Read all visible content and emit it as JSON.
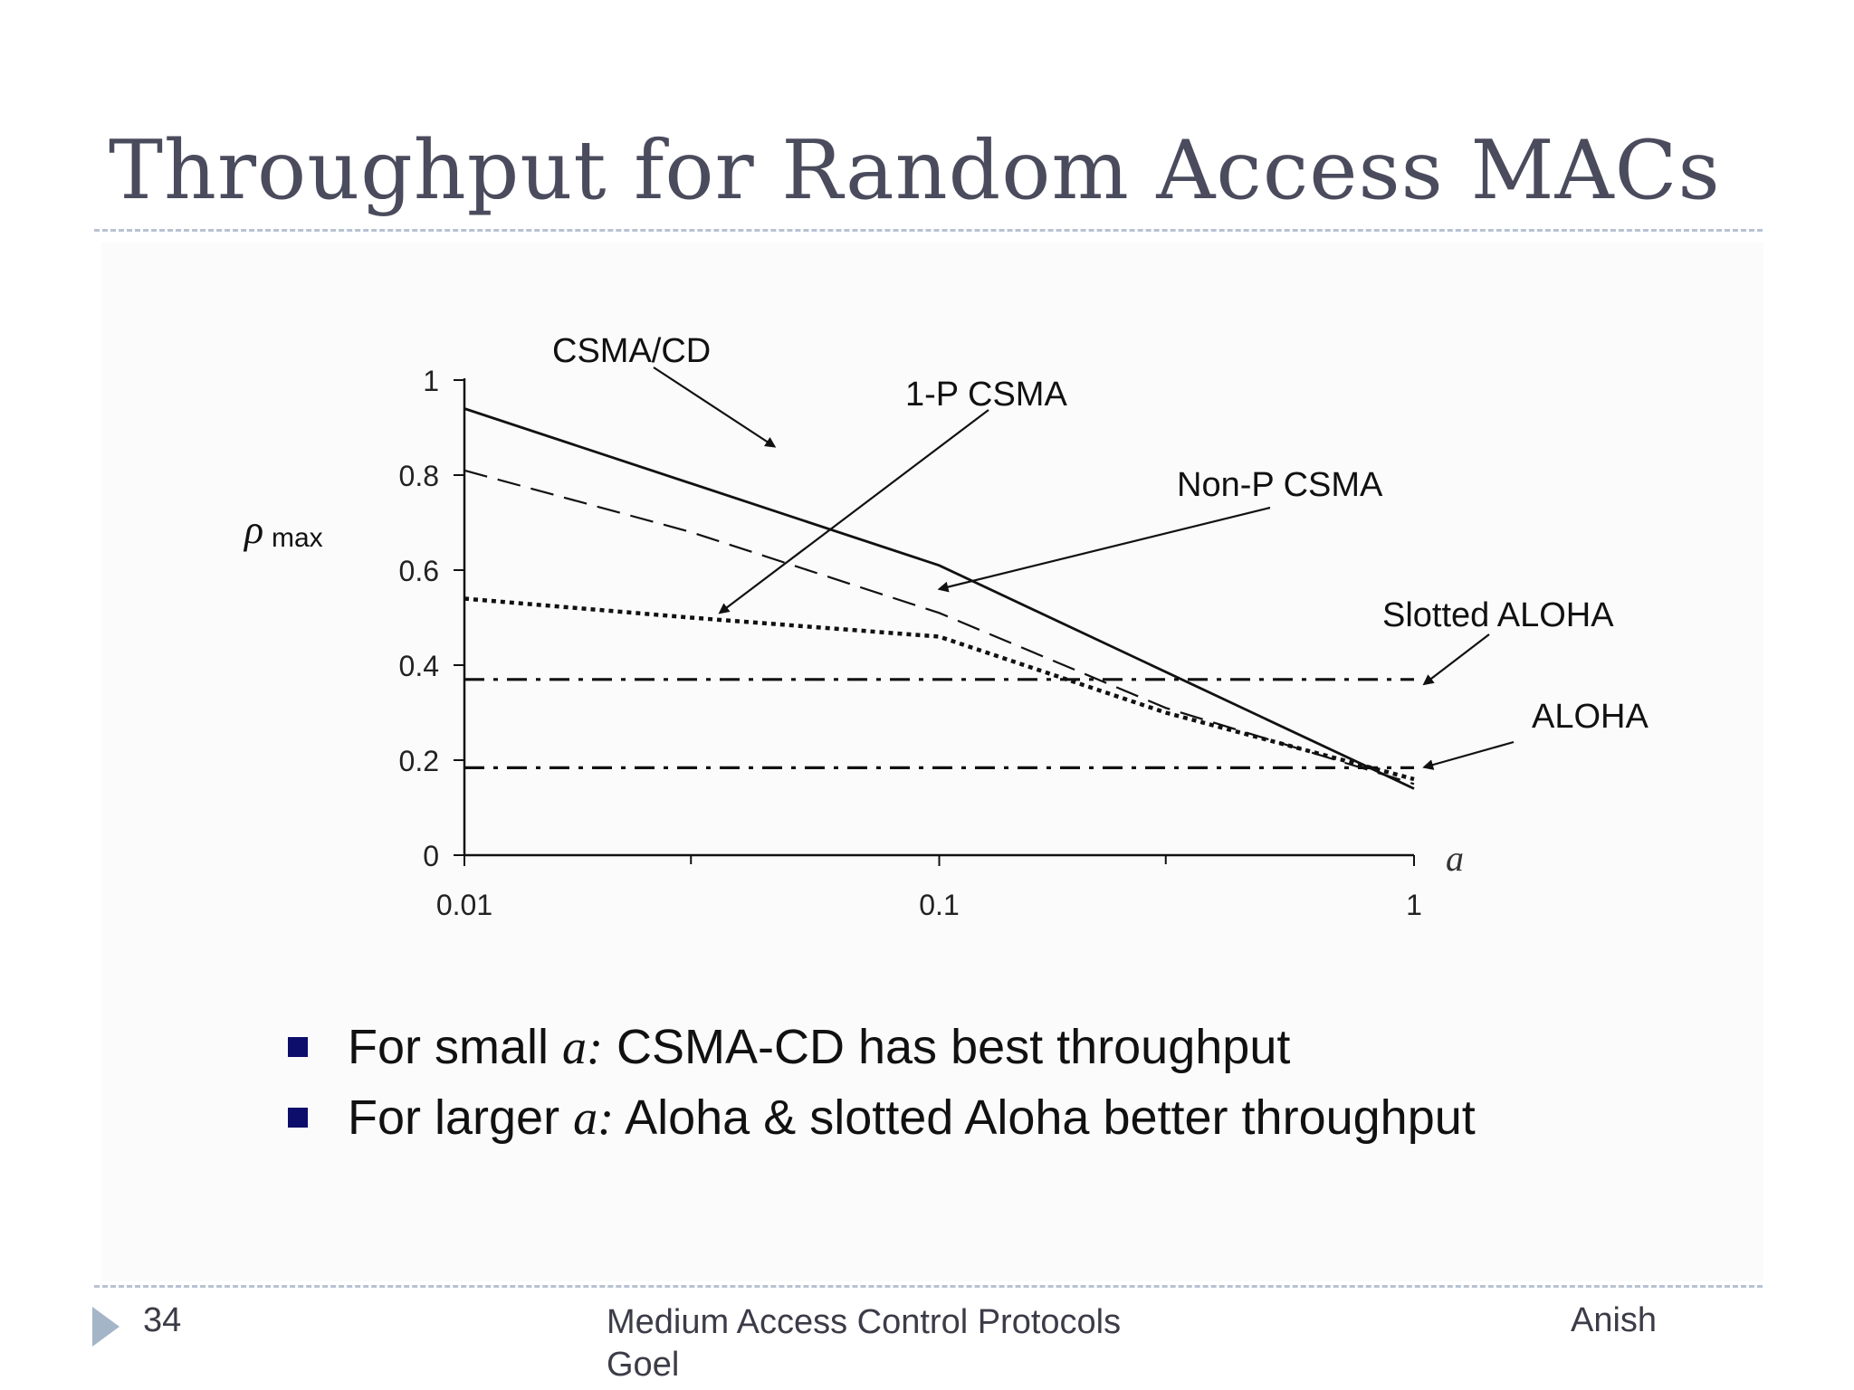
{
  "slide": {
    "title": "Throughput for Random Access MACs",
    "bullets": [
      {
        "prefix": "For small ",
        "var": "a:",
        "rest": "  CSMA-CD has best throughput"
      },
      {
        "prefix": "For larger ",
        "var": "a:",
        "rest": "  Aloha & slotted Aloha better throughput"
      }
    ],
    "footer": {
      "page_number": "34",
      "center": "Medium Access Control Protocols Goel",
      "right": "Anish"
    },
    "colors": {
      "title": "#4a4b5c",
      "bullet": "#0d0d6b",
      "divider": "#b6c3d1",
      "arrow": "#a4b5c7"
    }
  },
  "chart_data": {
    "type": "line",
    "title": "",
    "xlabel": "a",
    "ylabel": "ρmax",
    "xscale": "log",
    "xlim": [
      0.01,
      1
    ],
    "ylim": [
      0,
      1
    ],
    "x_ticks": [
      "0.01",
      "0.1",
      "1"
    ],
    "y_ticks": [
      "0",
      "0.2",
      "0.4",
      "0.6",
      "0.8",
      "1"
    ],
    "grid": false,
    "series": [
      {
        "name": "CSMA/CD",
        "style": "solid",
        "points": [
          [
            0.01,
            0.94
          ],
          [
            0.1,
            0.61
          ],
          [
            1,
            0.14
          ]
        ]
      },
      {
        "name": "Non-P CSMA",
        "style": "dashed",
        "points": [
          [
            0.01,
            0.81
          ],
          [
            0.03,
            0.68
          ],
          [
            0.1,
            0.51
          ],
          [
            0.3,
            0.31
          ],
          [
            1,
            0.15
          ]
        ]
      },
      {
        "name": "1-P CSMA",
        "style": "dotted",
        "points": [
          [
            0.01,
            0.54
          ],
          [
            0.03,
            0.5
          ],
          [
            0.1,
            0.46
          ],
          [
            0.3,
            0.3
          ],
          [
            1,
            0.16
          ]
        ]
      },
      {
        "name": "Slotted ALOHA",
        "style": "dash-dot",
        "points": [
          [
            0.01,
            0.37
          ],
          [
            1,
            0.37
          ]
        ]
      },
      {
        "name": "ALOHA",
        "style": "dash-dot",
        "points": [
          [
            0.01,
            0.184
          ],
          [
            1,
            0.184
          ]
        ]
      }
    ],
    "annotations": [
      {
        "label": "CSMA/CD",
        "arrow_to": [
          0.045,
          0.86
        ]
      },
      {
        "label": "1-P CSMA",
        "arrow_to": [
          0.0345,
          0.51
        ]
      },
      {
        "label": "Non-P CSMA",
        "arrow_to": [
          0.1,
          0.56
        ]
      },
      {
        "label": "Slotted ALOHA",
        "arrow_to": [
          1.05,
          0.36
        ]
      },
      {
        "label": "ALOHA",
        "arrow_to": [
          1.05,
          0.185
        ]
      }
    ]
  }
}
